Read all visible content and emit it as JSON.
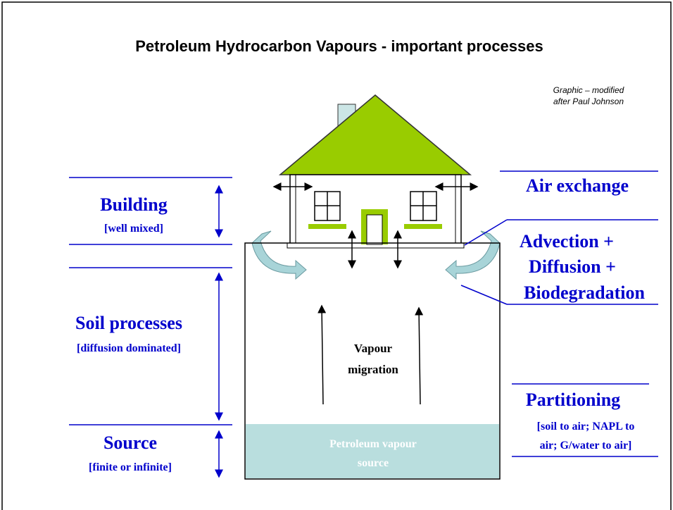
{
  "header": {
    "title": "Petroleum Hydrocarbon Vapours - important processes",
    "credit": [
      "Graphic – modified",
      "after Paul Johnson"
    ]
  },
  "left_labels": [
    {
      "label": "Building",
      "note": "[well mixed]"
    },
    {
      "label": "Soil processes",
      "note": "[diffusion dominated]"
    },
    {
      "label": "Source",
      "note": "[finite or infinite]"
    }
  ],
  "right_labels": {
    "air_exchange": "Air exchange",
    "transport": [
      "Advection +",
      "Diffusion +",
      "Biodegradation"
    ],
    "partitioning": {
      "label": "Partitioning",
      "note": [
        "[soil to air; NAPL to",
        "air; G/water to air]"
      ]
    }
  },
  "center": {
    "migration": [
      "Vapour",
      "migration"
    ],
    "source": [
      "Petroleum vapour",
      "source"
    ]
  }
}
